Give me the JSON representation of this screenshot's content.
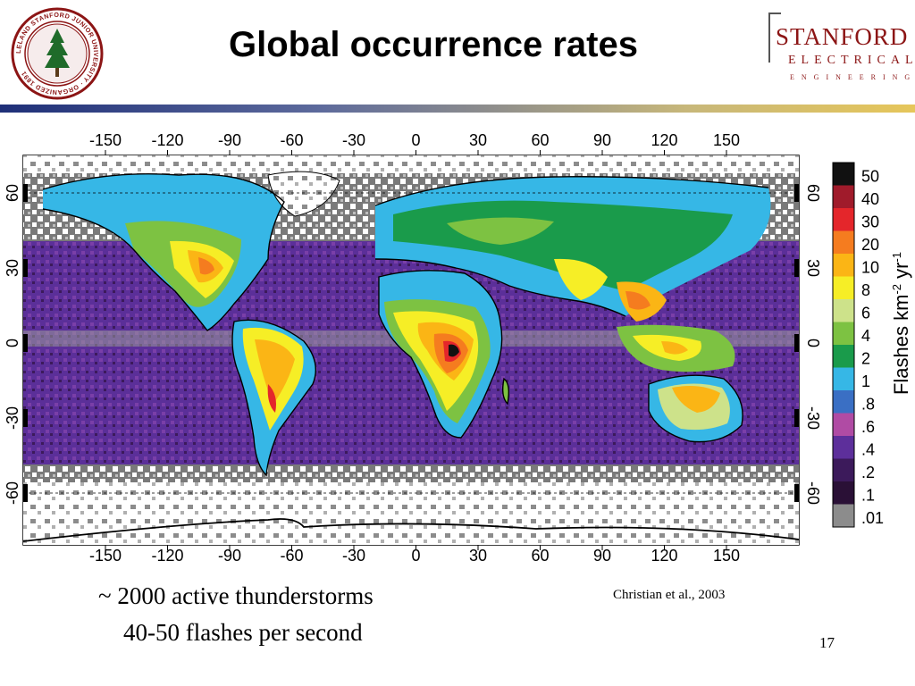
{
  "header": {
    "title": "Global occurrence rates",
    "seal_text": "LELAND STANFORD JUNIOR UNIVERSITY · ORGANIZED 1891",
    "logo_line1": "STANFORD",
    "logo_line2": "ELECTRICAL",
    "logo_line3": "ENGINEERING"
  },
  "map": {
    "lon_ticks": [
      "-150",
      "-120",
      "-90",
      "-60",
      "-30",
      "0",
      "30",
      "60",
      "90",
      "120",
      "150"
    ],
    "lat_ticks_left": [
      "60",
      "30",
      "0",
      "-30",
      "-60"
    ],
    "lat_ticks_right": [
      "60",
      "30",
      "0",
      "-30",
      "-60"
    ],
    "colorbar_label": "Flashes km",
    "colorbar_label_sup1": "-2",
    "colorbar_label_mid": " yr",
    "colorbar_label_sup2": "-1",
    "colorbar": [
      {
        "label": "50",
        "color": "#111111"
      },
      {
        "label": "40",
        "color": "#a01b2b"
      },
      {
        "label": "30",
        "color": "#e4262b"
      },
      {
        "label": "20",
        "color": "#f57c1f"
      },
      {
        "label": "10",
        "color": "#fbb515"
      },
      {
        "label": "8",
        "color": "#f6ee26"
      },
      {
        "label": "6",
        "color": "#cde28a"
      },
      {
        "label": "4",
        "color": "#7dc242"
      },
      {
        "label": "2",
        "color": "#1a9b4b"
      },
      {
        "label": "1",
        "color": "#36b7e6"
      },
      {
        "label": ".8",
        "color": "#3a6fc4"
      },
      {
        "label": ".6",
        "color": "#b04ba4"
      },
      {
        "label": ".4",
        "color": "#5d2f9b"
      },
      {
        "label": ".2",
        "color": "#3c1a5b"
      },
      {
        "label": ".1",
        "color": "#2a1036"
      },
      {
        "label": ".01",
        "color": "#8c8c8c"
      }
    ]
  },
  "footer": {
    "bullet1": "~ 2000 active thunderstorms",
    "bullet2": "40-50 flashes per second",
    "citation": "Christian et al., 2003",
    "page_number": "17"
  }
}
